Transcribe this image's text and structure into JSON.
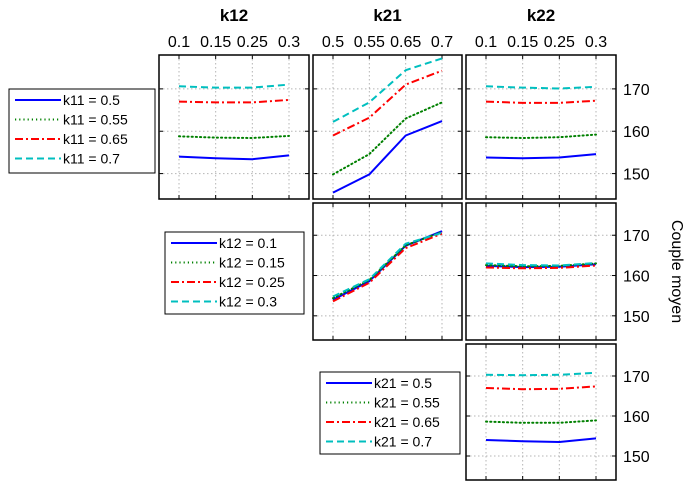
{
  "colors": {
    "series_1": "#0000ff",
    "series_2": "#008000",
    "series_3": "#ff0000",
    "series_4": "#00bfbf"
  },
  "chart_data": {
    "type": "line",
    "ylabel": "Couple moyen",
    "ylim": [
      144,
      178
    ],
    "y_ticks": [
      150,
      160,
      170
    ],
    "y_tick_labels": [
      "150",
      "160",
      "170"
    ],
    "grid": true,
    "columns": [
      {
        "title": "k12",
        "x_ticks": [
          0.1,
          0.15,
          0.25,
          0.3
        ],
        "x_tick_labels": [
          "0.1",
          "0.15",
          "0.25",
          "0.3"
        ]
      },
      {
        "title": "k21",
        "x_ticks": [
          0.5,
          0.55,
          0.65,
          0.7
        ],
        "x_tick_labels": [
          "0.5",
          "0.55",
          "0.65",
          "0.7"
        ]
      },
      {
        "title": "k22",
        "x_ticks": [
          0.1,
          0.15,
          0.25,
          0.3
        ],
        "x_tick_labels": [
          "0.1",
          "0.15",
          "0.25",
          "0.3"
        ]
      }
    ],
    "panels": [
      {
        "row": 0,
        "col": 0,
        "x_param": "k12",
        "legend_param": "k11",
        "series": [
          {
            "name": "k11 = 0.5",
            "style": "solid",
            "color": "#0000ff",
            "values": [
              154.0,
              153.6,
              153.4,
              154.3
            ]
          },
          {
            "name": "k11 = 0.55",
            "style": "dotted",
            "color": "#008000",
            "values": [
              158.8,
              158.5,
              158.4,
              158.9
            ]
          },
          {
            "name": "k11 = 0.65",
            "style": "dashdot",
            "color": "#ff0000",
            "values": [
              167.0,
              166.8,
              166.8,
              167.4
            ]
          },
          {
            "name": "k11 = 0.7",
            "style": "dashed",
            "color": "#00bfbf",
            "values": [
              170.6,
              170.3,
              170.3,
              171.0
            ]
          }
        ]
      },
      {
        "row": 0,
        "col": 1,
        "x_param": "k21",
        "legend_param": "k11",
        "series": [
          {
            "name": "k11 = 0.5",
            "style": "solid",
            "color": "#0000ff",
            "values": [
              145.5,
              149.8,
              159.0,
              162.4
            ]
          },
          {
            "name": "k11 = 0.55",
            "style": "dotted",
            "color": "#008000",
            "values": [
              149.8,
              154.6,
              163.0,
              166.8
            ]
          },
          {
            "name": "k11 = 0.65",
            "style": "dashdot",
            "color": "#ff0000",
            "values": [
              159.0,
              163.2,
              171.0,
              174.3
            ]
          },
          {
            "name": "k11 = 0.7",
            "style": "dashed",
            "color": "#00bfbf",
            "values": [
              162.2,
              166.8,
              174.4,
              177.2
            ]
          }
        ]
      },
      {
        "row": 0,
        "col": 2,
        "x_param": "k22",
        "legend_param": "k11",
        "series": [
          {
            "name": "k11 = 0.5",
            "style": "solid",
            "color": "#0000ff",
            "values": [
              153.8,
              153.6,
              153.8,
              154.6
            ]
          },
          {
            "name": "k11 = 0.55",
            "style": "dotted",
            "color": "#008000",
            "values": [
              158.6,
              158.4,
              158.6,
              159.2
            ]
          },
          {
            "name": "k11 = 0.65",
            "style": "dashdot",
            "color": "#ff0000",
            "values": [
              167.0,
              166.7,
              166.7,
              167.2
            ]
          },
          {
            "name": "k11 = 0.7",
            "style": "dashed",
            "color": "#00bfbf",
            "values": [
              170.6,
              170.3,
              170.1,
              170.5
            ]
          }
        ]
      },
      {
        "row": 1,
        "col": 1,
        "x_param": "k21",
        "legend_param": "k12",
        "series": [
          {
            "name": "k12 = 0.1",
            "style": "solid",
            "color": "#0000ff",
            "values": [
              154.0,
              158.6,
              167.4,
              171.0
            ]
          },
          {
            "name": "k12 = 0.15",
            "style": "dotted",
            "color": "#008000",
            "values": [
              154.4,
              158.9,
              167.5,
              170.8
            ]
          },
          {
            "name": "k12 = 0.25",
            "style": "dashdot",
            "color": "#ff0000",
            "values": [
              153.6,
              158.2,
              166.8,
              170.4
            ]
          },
          {
            "name": "k12 = 0.3",
            "style": "dashed",
            "color": "#00bfbf",
            "values": [
              154.8,
              159.1,
              167.9,
              170.6
            ]
          }
        ]
      },
      {
        "row": 1,
        "col": 2,
        "x_param": "k22",
        "legend_param": "k12",
        "series": [
          {
            "name": "k12 = 0.1",
            "style": "solid",
            "color": "#0000ff",
            "values": [
              162.4,
              162.1,
              162.2,
              162.8
            ]
          },
          {
            "name": "k12 = 0.15",
            "style": "dotted",
            "color": "#008000",
            "values": [
              162.6,
              162.3,
              162.4,
              163.0
            ]
          },
          {
            "name": "k12 = 0.25",
            "style": "dashdot",
            "color": "#ff0000",
            "values": [
              162.0,
              161.8,
              161.9,
              162.5
            ]
          },
          {
            "name": "k12 = 0.3",
            "style": "dashed",
            "color": "#00bfbf",
            "values": [
              163.0,
              162.6,
              162.5,
              163.1
            ]
          }
        ]
      },
      {
        "row": 2,
        "col": 2,
        "x_param": "k22",
        "legend_param": "k21",
        "series": [
          {
            "name": "k21 = 0.5",
            "style": "solid",
            "color": "#0000ff",
            "values": [
              154.0,
              153.7,
              153.5,
              154.4
            ]
          },
          {
            "name": "k21 = 0.55",
            "style": "dotted",
            "color": "#008000",
            "values": [
              158.6,
              158.3,
              158.3,
              158.9
            ]
          },
          {
            "name": "k21 = 0.65",
            "style": "dashdot",
            "color": "#ff0000",
            "values": [
              167.0,
              166.7,
              166.8,
              167.4
            ]
          },
          {
            "name": "k21 = 0.7",
            "style": "dashed",
            "color": "#00bfbf",
            "values": [
              170.3,
              170.2,
              170.3,
              170.8
            ]
          }
        ]
      }
    ],
    "legends": [
      {
        "param": "k11",
        "placement": "left of row 1",
        "entries": [
          "k11 = 0.5",
          "k11 = 0.55",
          "k11 = 0.65",
          "k11 = 0.7"
        ]
      },
      {
        "param": "k12",
        "placement": "left of row 2",
        "entries": [
          "k12 = 0.1",
          "k12 = 0.15",
          "k12 = 0.25",
          "k12 = 0.3"
        ]
      },
      {
        "param": "k21",
        "placement": "left of row 3",
        "entries": [
          "k21 = 0.5",
          "k21 = 0.55",
          "k21 = 0.65",
          "k21 = 0.7"
        ]
      }
    ]
  }
}
